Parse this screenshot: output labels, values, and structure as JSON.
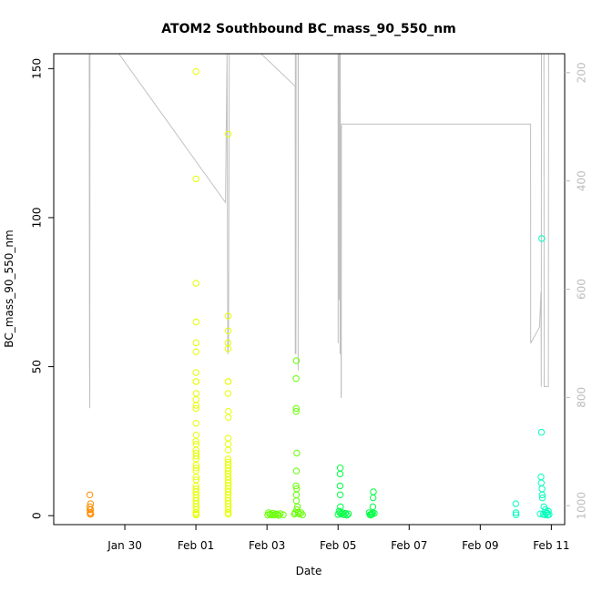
{
  "chart_data": {
    "type": "scatter",
    "title": "ATOM2 Southbound BC_mass_90_550_nm",
    "xlabel": "Date",
    "ylabel": "BC_mass_90_550_nm",
    "xlim": [
      "2017-01-28",
      "2017-02-11 9:00"
    ],
    "ylim": [
      -3,
      155
    ],
    "y_ticks": [
      0,
      50,
      100,
      150
    ],
    "x_ticks": [
      {
        "date": "2017-01-30",
        "label": "Jan 30"
      },
      {
        "date": "2017-02-01",
        "label": "Feb 01"
      },
      {
        "date": "2017-02-03",
        "label": "Feb 03"
      },
      {
        "date": "2017-02-05",
        "label": "Feb 05"
      },
      {
        "date": "2017-02-07",
        "label": "Feb 07"
      },
      {
        "date": "2017-02-09",
        "label": "Feb 09"
      },
      {
        "date": "2017-02-11",
        "label": "Feb 11"
      }
    ],
    "secondary_axis": {
      "side": "right",
      "reversed": true,
      "ticks": [
        200,
        400,
        600,
        800,
        1000
      ],
      "range": [
        165,
        1035
      ],
      "color": "#bdbdbd"
    },
    "grid": false,
    "series": [
      {
        "color": "#ff8c00",
        "points": [
          [
            "2017-01-29 00:20",
            7
          ],
          [
            "2017-01-29 00:25",
            3
          ],
          [
            "2017-01-29 00:30",
            2
          ],
          [
            "2017-01-29 00:35",
            1
          ],
          [
            "2017-01-29 00:40",
            1
          ],
          [
            "2017-01-29 00:45",
            0.5
          ],
          [
            "2017-01-29 00:50",
            4
          ],
          [
            "2017-01-29 00:55",
            2
          ],
          [
            "2017-01-29 01:00",
            0.5
          ]
        ]
      },
      {
        "color": "#e6ff00",
        "points": [
          [
            "2017-02-01 00:00",
            149
          ],
          [
            "2017-02-01 00:05",
            113
          ],
          [
            "2017-02-01 00:02",
            78
          ],
          [
            "2017-02-01 00:10",
            65
          ],
          [
            "2017-02-01 00:12",
            58
          ],
          [
            "2017-02-01 00:08",
            55
          ],
          [
            "2017-02-01 00:05",
            48
          ],
          [
            "2017-02-01 00:03",
            45
          ],
          [
            "2017-02-01 00:10",
            45
          ],
          [
            "2017-02-01 00:14",
            41
          ],
          [
            "2017-02-01 00:04",
            39
          ],
          [
            "2017-02-01 00:08",
            37
          ],
          [
            "2017-02-01 00:02",
            36
          ],
          [
            "2017-02-01 00:06",
            31
          ],
          [
            "2017-02-01 00:15",
            27
          ],
          [
            "2017-02-01 00:01",
            25
          ],
          [
            "2017-02-01 00:12",
            24
          ],
          [
            "2017-02-01 00:05",
            22
          ],
          [
            "2017-02-01 00:09",
            21
          ],
          [
            "2017-02-01 00:14",
            20
          ],
          [
            "2017-02-01 00:03",
            19
          ],
          [
            "2017-02-01 00:07",
            17
          ],
          [
            "2017-02-01 00:11",
            16
          ],
          [
            "2017-02-01 00:02",
            15
          ],
          [
            "2017-02-01 00:06",
            13
          ],
          [
            "2017-02-01 00:10",
            12
          ],
          [
            "2017-02-01 00:04",
            10
          ],
          [
            "2017-02-01 00:08",
            9
          ],
          [
            "2017-02-01 00:01",
            8
          ],
          [
            "2017-02-01 00:12",
            7
          ],
          [
            "2017-02-01 00:05",
            6
          ],
          [
            "2017-02-01 00:09",
            5
          ],
          [
            "2017-02-01 00:03",
            4
          ],
          [
            "2017-02-01 00:07",
            3
          ],
          [
            "2017-02-01 00:11",
            2
          ],
          [
            "2017-02-01 00:02",
            1
          ],
          [
            "2017-02-01 00:06",
            0.5
          ],
          [
            "2017-02-01 00:10",
            0.2
          ],
          [
            "2017-02-01 21:50",
            128
          ],
          [
            "2017-02-01 21:45",
            67
          ],
          [
            "2017-02-01 21:48",
            62
          ],
          [
            "2017-02-01 21:40",
            58
          ],
          [
            "2017-02-01 21:42",
            56
          ],
          [
            "2017-02-01 21:46",
            45
          ],
          [
            "2017-02-01 21:55",
            45
          ],
          [
            "2017-02-01 21:38",
            41
          ],
          [
            "2017-02-01 21:58",
            35
          ],
          [
            "2017-02-01 21:56",
            33
          ],
          [
            "2017-02-01 21:44",
            26
          ],
          [
            "2017-02-01 21:49",
            24
          ],
          [
            "2017-02-01 21:52",
            22
          ],
          [
            "2017-02-01 21:41",
            19
          ],
          [
            "2017-02-01 21:47",
            18
          ],
          [
            "2017-02-01 21:53",
            17
          ],
          [
            "2017-02-01 21:43",
            16
          ],
          [
            "2017-02-01 21:51",
            15
          ],
          [
            "2017-02-01 21:39",
            14
          ],
          [
            "2017-02-01 21:54",
            13
          ],
          [
            "2017-02-01 21:45",
            12
          ],
          [
            "2017-02-01 21:50",
            11
          ],
          [
            "2017-02-01 21:56",
            10
          ],
          [
            "2017-02-01 21:42",
            9
          ],
          [
            "2017-02-01 21:48",
            8
          ],
          [
            "2017-02-01 21:53",
            7
          ],
          [
            "2017-02-01 21:40",
            6
          ],
          [
            "2017-02-01 21:46",
            5
          ],
          [
            "2017-02-01 21:51",
            4
          ],
          [
            "2017-02-01 21:57",
            3
          ],
          [
            "2017-02-01 21:44",
            2
          ],
          [
            "2017-02-01 21:49",
            1
          ],
          [
            "2017-02-01 21:55",
            0.5
          ]
        ]
      },
      {
        "color": "#66ff00",
        "points": [
          [
            "2017-02-03 01:00",
            1
          ],
          [
            "2017-02-03 02:00",
            0.5
          ],
          [
            "2017-02-03 03:00",
            0.3
          ],
          [
            "2017-02-03 04:00",
            0.8
          ],
          [
            "2017-02-03 05:00",
            0.2
          ],
          [
            "2017-02-03 06:00",
            0.6
          ],
          [
            "2017-02-03 07:00",
            0.4
          ],
          [
            "2017-02-03 08:00",
            0.1
          ],
          [
            "2017-02-03 09:00",
            0.7
          ],
          [
            "2017-02-03 11:00",
            0.3
          ],
          [
            "2017-02-03 00:30",
            0.2
          ],
          [
            "2017-02-03 19:50",
            52
          ],
          [
            "2017-02-03 19:40",
            46
          ],
          [
            "2017-02-03 19:45",
            36
          ],
          [
            "2017-02-03 19:42",
            35
          ],
          [
            "2017-02-03 20:10",
            21
          ],
          [
            "2017-02-03 19:55",
            15
          ],
          [
            "2017-02-03 19:35",
            10
          ],
          [
            "2017-02-03 20:05",
            9
          ],
          [
            "2017-02-03 19:48",
            7
          ],
          [
            "2017-02-03 19:52",
            5
          ],
          [
            "2017-02-03 20:30",
            3
          ],
          [
            "2017-02-03 20:00",
            2
          ],
          [
            "2017-02-03 21:00",
            1
          ],
          [
            "2017-02-03 22:00",
            0.5
          ],
          [
            "2017-02-03 23:00",
            1
          ],
          [
            "2017-02-03 18:30",
            0.5
          ],
          [
            "2017-02-03 19:00",
            1
          ],
          [
            "2017-02-04 00:00",
            0.3
          ]
        ]
      },
      {
        "color": "#00ff44",
        "points": [
          [
            "2017-02-05 01:30",
            16
          ],
          [
            "2017-02-05 01:25",
            14
          ],
          [
            "2017-02-05 01:20",
            10
          ],
          [
            "2017-02-05 01:28",
            7
          ],
          [
            "2017-02-05 01:35",
            3
          ],
          [
            "2017-02-05 01:10",
            1
          ],
          [
            "2017-02-05 02:00",
            0.5
          ],
          [
            "2017-02-05 03:00",
            1
          ],
          [
            "2017-02-05 04:00",
            0.3
          ],
          [
            "2017-02-05 05:00",
            0.8
          ],
          [
            "2017-02-05 00:00",
            0.4
          ],
          [
            "2017-02-05 06:00",
            0.2
          ],
          [
            "2017-02-05 00:40",
            1.5
          ],
          [
            "2017-02-05 07:00",
            0.6
          ],
          [
            "2017-02-05 23:50",
            8
          ],
          [
            "2017-02-05 23:40",
            6
          ],
          [
            "2017-02-05 23:30",
            3
          ],
          [
            "2017-02-05 23:20",
            1
          ],
          [
            "2017-02-05 22:30",
            0.5
          ],
          [
            "2017-02-05 21:30",
            0.3
          ],
          [
            "2017-02-05 21:00",
            1
          ],
          [
            "2017-02-06 00:30",
            0.8
          ],
          [
            "2017-02-05 22:00",
            0.2
          ],
          [
            "2017-02-05 23:00",
            0.5
          ]
        ]
      },
      {
        "color": "#00ffbb",
        "points": [
          [
            "2017-02-10 00:00",
            4
          ],
          [
            "2017-02-10 00:05",
            1
          ],
          [
            "2017-02-10 00:10",
            0.3
          ],
          [
            "2017-02-10 17:30",
            93
          ],
          [
            "2017-02-10 17:20",
            28
          ],
          [
            "2017-02-10 17:00",
            13
          ],
          [
            "2017-02-10 17:10",
            11
          ],
          [
            "2017-02-10 17:40",
            9
          ],
          [
            "2017-02-10 17:50",
            7
          ],
          [
            "2017-02-10 18:00",
            6
          ],
          [
            "2017-02-10 19:00",
            3
          ],
          [
            "2017-02-10 20:00",
            2
          ],
          [
            "2017-02-10 21:00",
            1
          ],
          [
            "2017-02-10 22:00",
            1.5
          ],
          [
            "2017-02-10 18:30",
            0.5
          ],
          [
            "2017-02-10 19:30",
            0.3
          ],
          [
            "2017-02-10 20:30",
            0.8
          ],
          [
            "2017-02-10 21:30",
            0.2
          ],
          [
            "2017-02-10 22:30",
            0.4
          ],
          [
            "2017-02-10 16:30",
            0.6
          ]
        ]
      }
    ],
    "altitude_trace": {
      "color": "#c0c0c0",
      "points": [
        [
          "2017-01-29 00:00",
          165
        ],
        [
          "2017-01-29 00:10",
          740
        ],
        [
          "2017-01-29 00:20",
          820
        ],
        [
          "2017-01-29 00:30",
          165
        ],
        [
          "2017-01-29 20:00",
          165
        ],
        [
          "2017-02-01 20:00",
          440
        ],
        [
          "2017-02-01 21:00",
          165
        ],
        [
          "2017-02-01 21:30",
          720
        ],
        [
          "2017-02-01 22:00",
          700
        ],
        [
          "2017-02-01 22:30",
          165
        ],
        [
          "2017-02-02 20:00",
          165
        ],
        [
          "2017-02-03 19:00",
          225
        ],
        [
          "2017-02-03 19:05",
          720
        ],
        [
          "2017-02-03 19:10",
          165
        ],
        [
          "2017-02-03 19:20",
          165
        ],
        [
          "2017-02-03 19:30",
          720
        ],
        [
          "2017-02-03 19:40",
          165
        ],
        [
          "2017-02-03 21:00",
          165
        ],
        [
          "2017-02-03 21:05",
          750
        ],
        [
          "2017-02-03 21:10",
          165
        ],
        [
          "2017-02-05 00:00",
          165
        ],
        [
          "2017-02-05 00:05",
          700
        ],
        [
          "2017-02-05 00:10",
          165
        ],
        [
          "2017-02-05 00:40",
          165
        ],
        [
          "2017-02-05 00:45",
          620
        ],
        [
          "2017-02-05 01:00",
          610
        ],
        [
          "2017-02-05 01:10",
          165
        ],
        [
          "2017-02-05 01:20",
          720
        ],
        [
          "2017-02-05 01:30",
          165
        ],
        [
          "2017-02-05 01:40",
          720
        ],
        [
          "2017-02-05 01:45",
          300
        ],
        [
          "2017-02-05 01:55",
          300
        ],
        [
          "2017-02-05 02:00",
          800
        ],
        [
          "2017-02-05 02:10",
          800
        ],
        [
          "2017-02-05 02:15",
          295
        ],
        [
          "2017-02-10 10:00",
          295
        ],
        [
          "2017-02-10 10:05",
          700
        ],
        [
          "2017-02-10 16:00",
          670
        ],
        [
          "2017-02-10 17:00",
          605
        ],
        [
          "2017-02-10 17:10",
          780
        ],
        [
          "2017-02-10 17:20",
          165
        ],
        [
          "2017-02-10 19:00",
          165
        ],
        [
          "2017-02-10 19:10",
          780
        ],
        [
          "2017-02-10 22:00",
          780
        ],
        [
          "2017-02-10 22:10",
          165
        ]
      ]
    }
  }
}
